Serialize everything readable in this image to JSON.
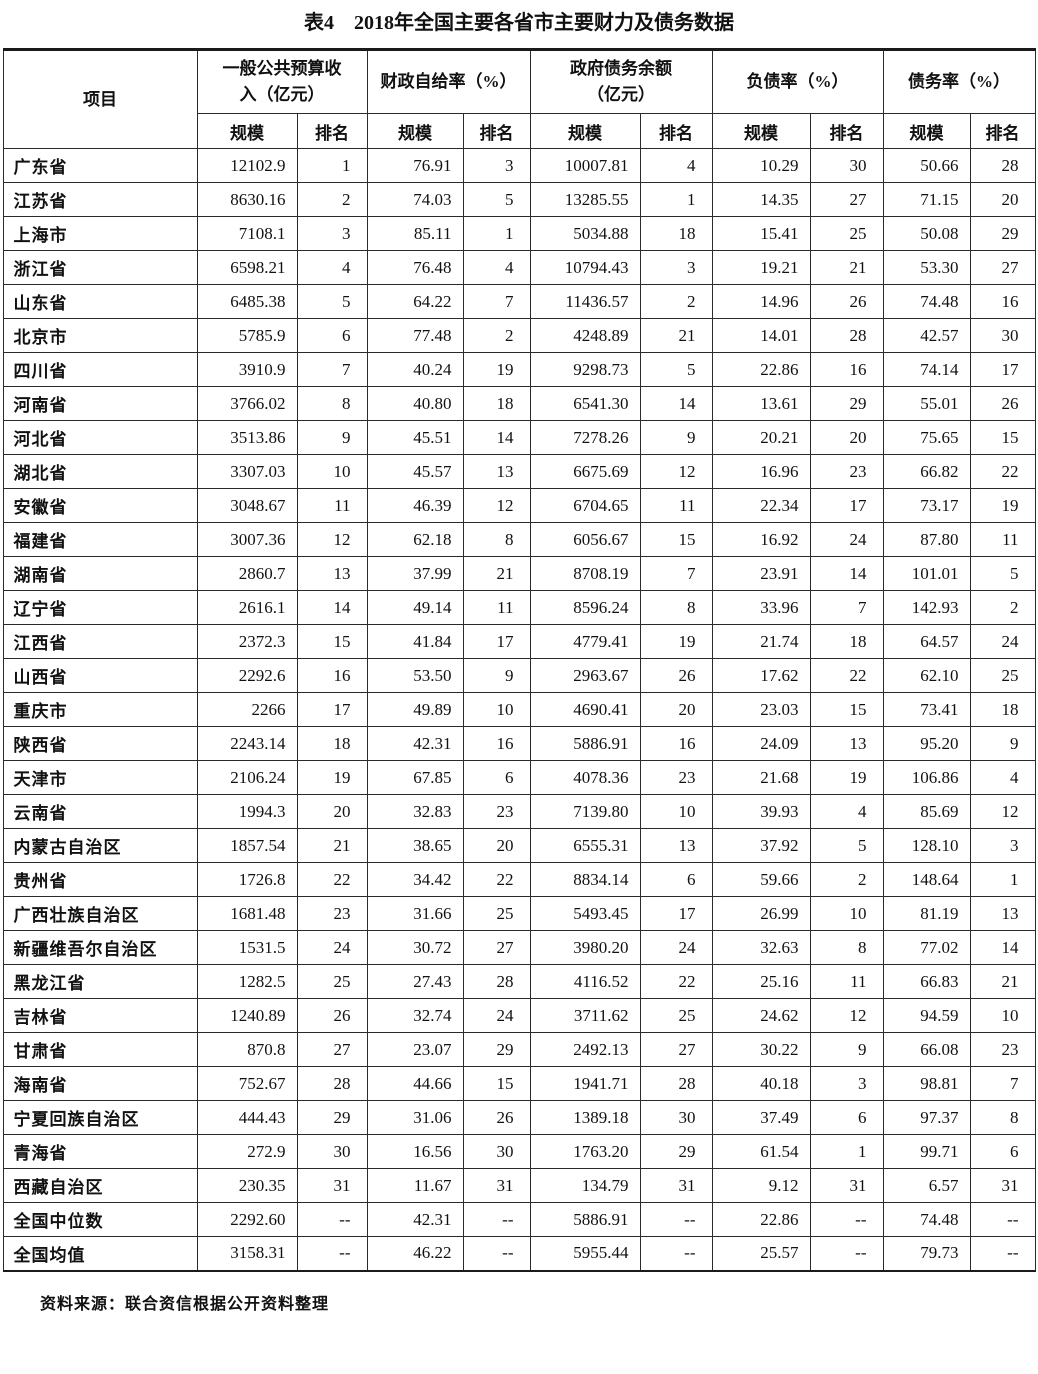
{
  "title": "表4　2018年全国主要各省市主要财力及债务数据",
  "source_note": "资料来源：联合资信根据公开资料整理",
  "table": {
    "item_header": "项目",
    "groups": [
      {
        "label": "一般公共预算收\n入（亿元）",
        "sub": [
          "规模",
          "排名"
        ]
      },
      {
        "label": "财政自给率（%）",
        "sub": [
          "规模",
          "排名"
        ]
      },
      {
        "label": "政府债务余额\n（亿元）",
        "sub": [
          "规模",
          "排名"
        ]
      },
      {
        "label": "负债率（%）",
        "sub": [
          "规模",
          "排名"
        ]
      },
      {
        "label": "债务率（%）",
        "sub": [
          "规模",
          "排名"
        ]
      }
    ],
    "rows": [
      [
        "广东省",
        "12102.9",
        "1",
        "76.91",
        "3",
        "10007.81",
        "4",
        "10.29",
        "30",
        "50.66",
        "28"
      ],
      [
        "江苏省",
        "8630.16",
        "2",
        "74.03",
        "5",
        "13285.55",
        "1",
        "14.35",
        "27",
        "71.15",
        "20"
      ],
      [
        "上海市",
        "7108.1",
        "3",
        "85.11",
        "1",
        "5034.88",
        "18",
        "15.41",
        "25",
        "50.08",
        "29"
      ],
      [
        "浙江省",
        "6598.21",
        "4",
        "76.48",
        "4",
        "10794.43",
        "3",
        "19.21",
        "21",
        "53.30",
        "27"
      ],
      [
        "山东省",
        "6485.38",
        "5",
        "64.22",
        "7",
        "11436.57",
        "2",
        "14.96",
        "26",
        "74.48",
        "16"
      ],
      [
        "北京市",
        "5785.9",
        "6",
        "77.48",
        "2",
        "4248.89",
        "21",
        "14.01",
        "28",
        "42.57",
        "30"
      ],
      [
        "四川省",
        "3910.9",
        "7",
        "40.24",
        "19",
        "9298.73",
        "5",
        "22.86",
        "16",
        "74.14",
        "17"
      ],
      [
        "河南省",
        "3766.02",
        "8",
        "40.80",
        "18",
        "6541.30",
        "14",
        "13.61",
        "29",
        "55.01",
        "26"
      ],
      [
        "河北省",
        "3513.86",
        "9",
        "45.51",
        "14",
        "7278.26",
        "9",
        "20.21",
        "20",
        "75.65",
        "15"
      ],
      [
        "湖北省",
        "3307.03",
        "10",
        "45.57",
        "13",
        "6675.69",
        "12",
        "16.96",
        "23",
        "66.82",
        "22"
      ],
      [
        "安徽省",
        "3048.67",
        "11",
        "46.39",
        "12",
        "6704.65",
        "11",
        "22.34",
        "17",
        "73.17",
        "19"
      ],
      [
        "福建省",
        "3007.36",
        "12",
        "62.18",
        "8",
        "6056.67",
        "15",
        "16.92",
        "24",
        "87.80",
        "11"
      ],
      [
        "湖南省",
        "2860.7",
        "13",
        "37.99",
        "21",
        "8708.19",
        "7",
        "23.91",
        "14",
        "101.01",
        "5"
      ],
      [
        "辽宁省",
        "2616.1",
        "14",
        "49.14",
        "11",
        "8596.24",
        "8",
        "33.96",
        "7",
        "142.93",
        "2"
      ],
      [
        "江西省",
        "2372.3",
        "15",
        "41.84",
        "17",
        "4779.41",
        "19",
        "21.74",
        "18",
        "64.57",
        "24"
      ],
      [
        "山西省",
        "2292.6",
        "16",
        "53.50",
        "9",
        "2963.67",
        "26",
        "17.62",
        "22",
        "62.10",
        "25"
      ],
      [
        "重庆市",
        "2266",
        "17",
        "49.89",
        "10",
        "4690.41",
        "20",
        "23.03",
        "15",
        "73.41",
        "18"
      ],
      [
        "陕西省",
        "2243.14",
        "18",
        "42.31",
        "16",
        "5886.91",
        "16",
        "24.09",
        "13",
        "95.20",
        "9"
      ],
      [
        "天津市",
        "2106.24",
        "19",
        "67.85",
        "6",
        "4078.36",
        "23",
        "21.68",
        "19",
        "106.86",
        "4"
      ],
      [
        "云南省",
        "1994.3",
        "20",
        "32.83",
        "23",
        "7139.80",
        "10",
        "39.93",
        "4",
        "85.69",
        "12"
      ],
      [
        "内蒙古自治区",
        "1857.54",
        "21",
        "38.65",
        "20",
        "6555.31",
        "13",
        "37.92",
        "5",
        "128.10",
        "3"
      ],
      [
        "贵州省",
        "1726.8",
        "22",
        "34.42",
        "22",
        "8834.14",
        "6",
        "59.66",
        "2",
        "148.64",
        "1"
      ],
      [
        "广西壮族自治区",
        "1681.48",
        "23",
        "31.66",
        "25",
        "5493.45",
        "17",
        "26.99",
        "10",
        "81.19",
        "13"
      ],
      [
        "新疆维吾尔自治区",
        "1531.5",
        "24",
        "30.72",
        "27",
        "3980.20",
        "24",
        "32.63",
        "8",
        "77.02",
        "14"
      ],
      [
        "黑龙江省",
        "1282.5",
        "25",
        "27.43",
        "28",
        "4116.52",
        "22",
        "25.16",
        "11",
        "66.83",
        "21"
      ],
      [
        "吉林省",
        "1240.89",
        "26",
        "32.74",
        "24",
        "3711.62",
        "25",
        "24.62",
        "12",
        "94.59",
        "10"
      ],
      [
        "甘肃省",
        "870.8",
        "27",
        "23.07",
        "29",
        "2492.13",
        "27",
        "30.22",
        "9",
        "66.08",
        "23"
      ],
      [
        "海南省",
        "752.67",
        "28",
        "44.66",
        "15",
        "1941.71",
        "28",
        "40.18",
        "3",
        "98.81",
        "7"
      ],
      [
        "宁夏回族自治区",
        "444.43",
        "29",
        "31.06",
        "26",
        "1389.18",
        "30",
        "37.49",
        "6",
        "97.37",
        "8"
      ],
      [
        "青海省",
        "272.9",
        "30",
        "16.56",
        "30",
        "1763.20",
        "29",
        "61.54",
        "1",
        "99.71",
        "6"
      ],
      [
        "西藏自治区",
        "230.35",
        "31",
        "11.67",
        "31",
        "134.79",
        "31",
        "9.12",
        "31",
        "6.57",
        "31"
      ],
      [
        "全国中位数",
        "2292.60",
        "--",
        "42.31",
        "--",
        "5886.91",
        "--",
        "22.86",
        "--",
        "74.48",
        "--"
      ],
      [
        "全国均值",
        "3158.31",
        "--",
        "46.22",
        "--",
        "5955.44",
        "--",
        "25.57",
        "--",
        "79.73",
        "--"
      ]
    ]
  }
}
